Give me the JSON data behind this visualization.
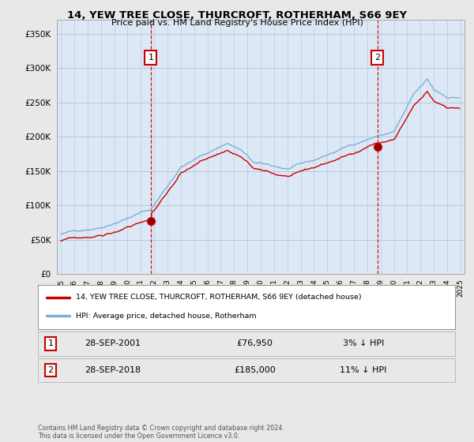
{
  "title": "14, YEW TREE CLOSE, THURCROFT, ROTHERHAM, S66 9EY",
  "subtitle": "Price paid vs. HM Land Registry's House Price Index (HPI)",
  "legend_label1": "14, YEW TREE CLOSE, THURCROFT, ROTHERHAM, S66 9EY (detached house)",
  "legend_label2": "HPI: Average price, detached house, Rotherham",
  "sale1_date": "28-SEP-2001",
  "sale1_price": "£76,950",
  "sale1_hpi": "3% ↓ HPI",
  "sale2_date": "28-SEP-2018",
  "sale2_price": "£185,000",
  "sale2_hpi": "11% ↓ HPI",
  "copyright": "Contains HM Land Registry data © Crown copyright and database right 2024.\nThis data is licensed under the Open Government Licence v3.0.",
  "ylim": [
    0,
    370000
  ],
  "yticks": [
    0,
    50000,
    100000,
    150000,
    200000,
    250000,
    300000,
    350000
  ],
  "sale1_x": 2001.75,
  "sale2_x": 2018.75,
  "sale1_price_val": 76950,
  "sale2_price_val": 185000,
  "line_color_red": "#cc0000",
  "line_color_blue": "#7ab0d4",
  "vline_color": "#cc0000",
  "background_color": "#e8e8e8",
  "plot_bg_color": "#dce8f5",
  "annotation_box_color": "#cc0000"
}
